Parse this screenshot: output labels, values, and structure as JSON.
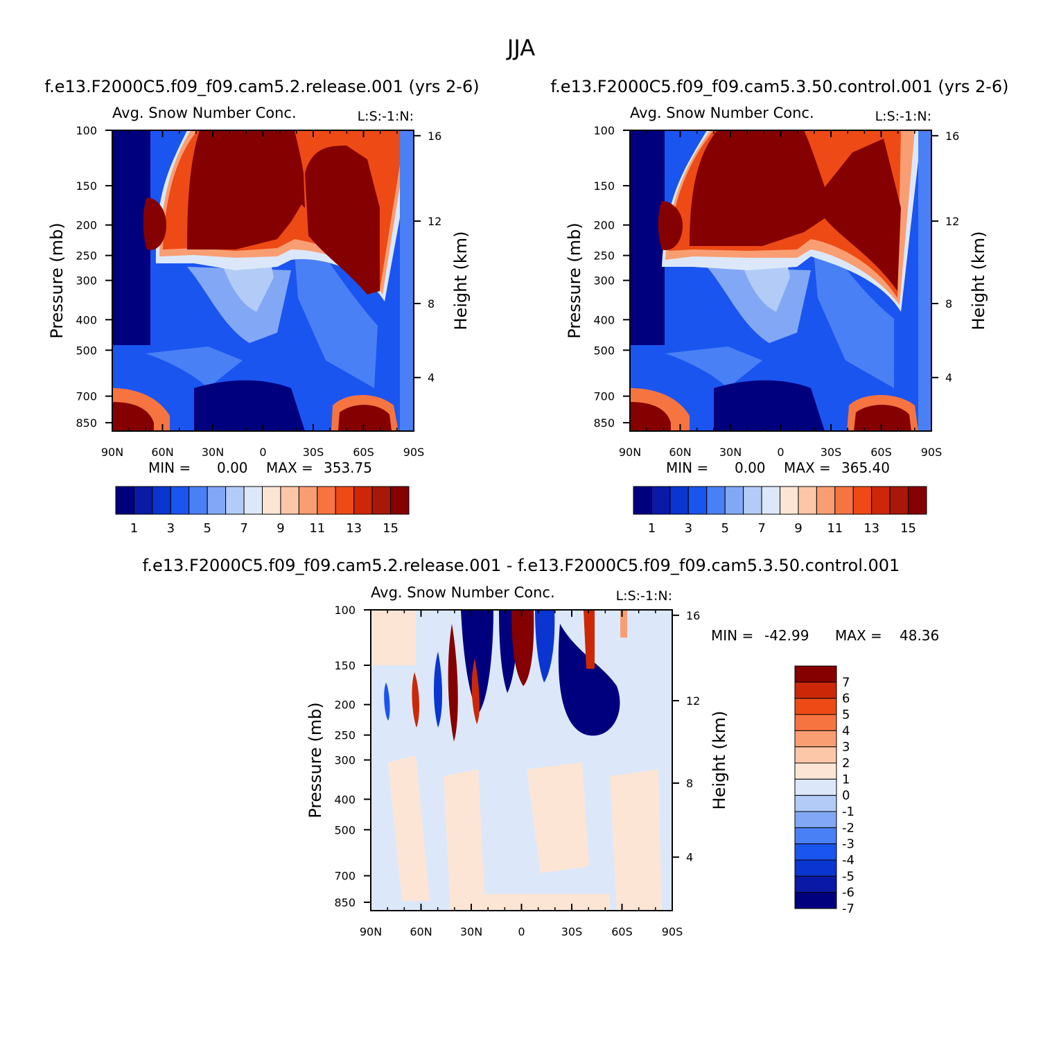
{
  "figure": {
    "title": "JJA"
  },
  "palette": {
    "abs": [
      "#00007f",
      "#0a1aa6",
      "#0a35d0",
      "#1b55f0",
      "#4a80f5",
      "#82a8f5",
      "#b2ccf7",
      "#dce8fa",
      "#fde5d5",
      "#fcc6a8",
      "#f99e73",
      "#f67440",
      "#ed4a15",
      "#cc2808",
      "#a81808",
      "#850000"
    ],
    "diff": [
      "#00007f",
      "#0a1aa6",
      "#0a35d0",
      "#1b55f0",
      "#4a80f5",
      "#82a8f5",
      "#b2ccf7",
      "#dce8fa",
      "#fde5d5",
      "#fcc6a8",
      "#f99e73",
      "#f67440",
      "#ed4a15",
      "#cc2808",
      "#850000"
    ],
    "frame": "#000000"
  },
  "chart_data": [
    {
      "type": "heatmap",
      "title": "f.e13.F2000C5.f09_f09.cam5.2.release.001  (yrs 2-6)",
      "subtitle": "Avg. Snow Number Conc.",
      "right_label": "L:S:-1:N:",
      "xlabel": "",
      "ylabel": "Pressure (mb)",
      "y2label": "Height (km)",
      "x_ticks": [
        "90N",
        "60N",
        "30N",
        "0",
        "30S",
        "60S",
        "90S"
      ],
      "y_ticks": [
        "100",
        "150",
        "200",
        "250",
        "300",
        "400",
        "500",
        "700",
        "850"
      ],
      "y2_ticks": [
        "16",
        "12",
        "8",
        "4"
      ],
      "min_label": "MIN =",
      "min_value": "0.00",
      "max_label": "MAX =",
      "max_value": "353.75",
      "colorbar": {
        "orientation": "horizontal",
        "labels": [
          "1",
          "3",
          "5",
          "7",
          "9",
          "11",
          "13",
          "15"
        ],
        "levels": [
          1,
          2,
          3,
          4,
          5,
          6,
          7,
          8,
          9,
          10,
          11,
          12,
          13,
          14,
          15
        ]
      }
    },
    {
      "type": "heatmap",
      "title": "f.e13.F2000C5.f09_f09.cam5.3.50.control.001  (yrs 2-6)",
      "subtitle": "Avg. Snow Number Conc.",
      "right_label": "L:S:-1:N:",
      "xlabel": "",
      "ylabel": "Pressure (mb)",
      "y2label": "Height (km)",
      "x_ticks": [
        "90N",
        "60N",
        "30N",
        "0",
        "30S",
        "60S",
        "90S"
      ],
      "y_ticks": [
        "100",
        "150",
        "200",
        "250",
        "300",
        "400",
        "500",
        "700",
        "850"
      ],
      "y2_ticks": [
        "16",
        "12",
        "8",
        "4"
      ],
      "min_label": "MIN =",
      "min_value": "0.00",
      "max_label": "MAX =",
      "max_value": "365.40",
      "colorbar": {
        "orientation": "horizontal",
        "labels": [
          "1",
          "3",
          "5",
          "7",
          "9",
          "11",
          "13",
          "15"
        ],
        "levels": [
          1,
          2,
          3,
          4,
          5,
          6,
          7,
          8,
          9,
          10,
          11,
          12,
          13,
          14,
          15
        ]
      }
    },
    {
      "type": "heatmap",
      "title": "f.e13.F2000C5.f09_f09.cam5.2.release.001 - f.e13.F2000C5.f09_f09.cam5.3.50.control.001",
      "subtitle": "Avg. Snow Number Conc.",
      "right_label": "L:S:-1:N:",
      "xlabel": "",
      "ylabel": "Pressure (mb)",
      "y2label": "Height (km)",
      "x_ticks": [
        "90N",
        "60N",
        "30N",
        "0",
        "30S",
        "60S",
        "90S"
      ],
      "y_ticks": [
        "100",
        "150",
        "200",
        "250",
        "300",
        "400",
        "500",
        "700",
        "850"
      ],
      "y2_ticks": [
        "16",
        "12",
        "8",
        "4"
      ],
      "min_label": "MIN =",
      "min_value": "-42.99",
      "max_label": "MAX =",
      "max_value": "48.36",
      "colorbar": {
        "orientation": "vertical",
        "labels": [
          "7",
          "6",
          "5",
          "4",
          "3",
          "2",
          "1",
          "0",
          "-1",
          "-2",
          "-3",
          "-4",
          "-5",
          "-6",
          "-7"
        ],
        "levels": [
          7,
          6,
          5,
          4,
          3,
          2,
          1,
          0,
          -1,
          -2,
          -3,
          -4,
          -5,
          -6,
          -7
        ]
      }
    }
  ]
}
